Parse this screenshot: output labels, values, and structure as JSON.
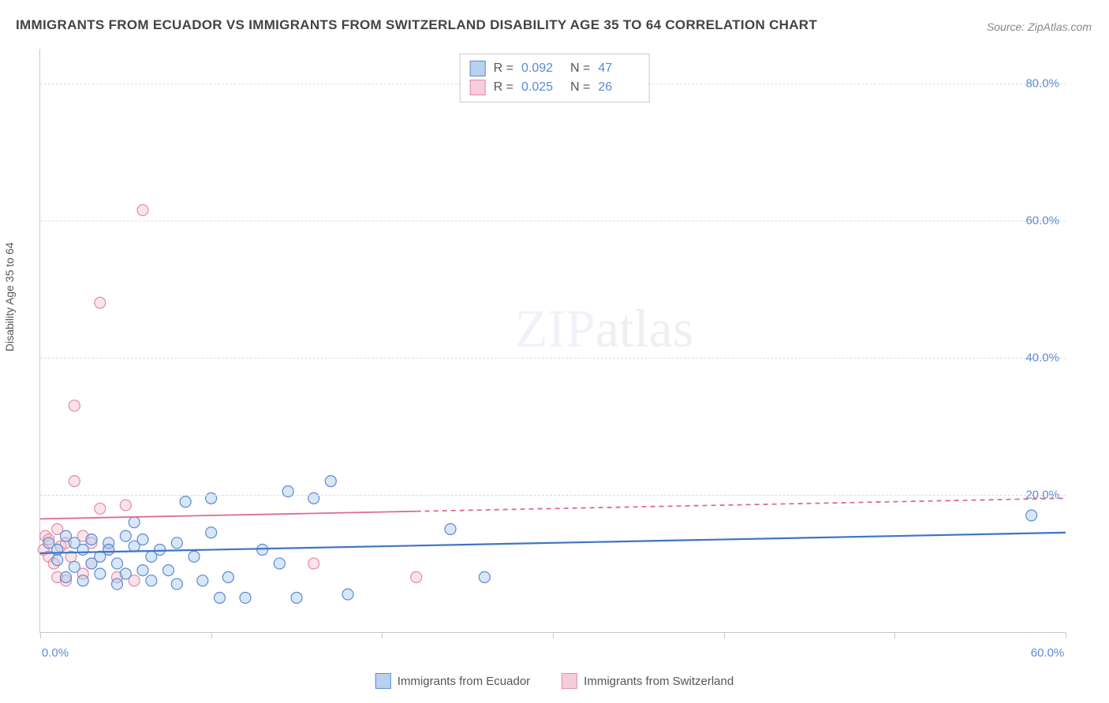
{
  "title": "IMMIGRANTS FROM ECUADOR VS IMMIGRANTS FROM SWITZERLAND DISABILITY AGE 35 TO 64 CORRELATION CHART",
  "source": "Source: ZipAtlas.com",
  "y_axis_label": "Disability Age 35 to 64",
  "watermark_a": "ZIP",
  "watermark_b": "atlas",
  "chart": {
    "type": "scatter",
    "xlim": [
      0,
      60
    ],
    "ylim": [
      0,
      85
    ],
    "x_ticks": [
      0,
      10,
      20,
      30,
      40,
      50,
      60
    ],
    "x_tick_labels": {
      "0": "0.0%",
      "60": "60.0%"
    },
    "y_grid": [
      20,
      40,
      60,
      80
    ],
    "y_tick_labels": {
      "20": "20.0%",
      "40": "40.0%",
      "60": "60.0%",
      "80": "80.0%"
    },
    "background_color": "#ffffff",
    "grid_color": "#dedede",
    "axis_color": "#c9c9c9",
    "tick_label_color": "#5b8bd4",
    "marker_radius": 7,
    "marker_opacity": 0.45,
    "series": [
      {
        "name": "Immigrants from Ecuador",
        "fill": "#a9c7ec",
        "stroke": "#5b8bd4",
        "swatch_fill": "#b8d1ef",
        "swatch_border": "#5b8bd4",
        "R": "0.092",
        "N": "47",
        "trend": {
          "x1": 0,
          "y1": 11.5,
          "x2": 60,
          "y2": 14.5,
          "color": "#3f74c7",
          "width": 2.2,
          "dash_after_x": null
        },
        "points": [
          [
            0.5,
            13
          ],
          [
            1,
            12
          ],
          [
            1,
            10.5
          ],
          [
            1.5,
            14
          ],
          [
            1.5,
            8
          ],
          [
            2,
            13
          ],
          [
            2,
            9.5
          ],
          [
            2.5,
            12
          ],
          [
            2.5,
            7.5
          ],
          [
            3,
            13.5
          ],
          [
            3,
            10
          ],
          [
            3.5,
            11
          ],
          [
            3.5,
            8.5
          ],
          [
            4,
            13
          ],
          [
            4,
            12
          ],
          [
            4.5,
            10
          ],
          [
            4.5,
            7
          ],
          [
            5,
            14
          ],
          [
            5,
            8.5
          ],
          [
            5.5,
            16
          ],
          [
            5.5,
            12.5
          ],
          [
            6,
            9
          ],
          [
            6,
            13.5
          ],
          [
            6.5,
            11
          ],
          [
            6.5,
            7.5
          ],
          [
            7,
            12
          ],
          [
            7.5,
            9
          ],
          [
            8,
            13
          ],
          [
            8,
            7
          ],
          [
            8.5,
            19
          ],
          [
            9,
            11
          ],
          [
            9.5,
            7.5
          ],
          [
            10,
            14.5
          ],
          [
            10,
            19.5
          ],
          [
            10.5,
            5
          ],
          [
            11,
            8
          ],
          [
            12,
            5
          ],
          [
            13,
            12
          ],
          [
            14,
            10
          ],
          [
            14.5,
            20.5
          ],
          [
            15,
            5
          ],
          [
            16,
            19.5
          ],
          [
            17,
            22
          ],
          [
            18,
            5.5
          ],
          [
            24,
            15
          ],
          [
            26,
            8
          ],
          [
            58,
            17
          ]
        ]
      },
      {
        "name": "Immigrants from Switzerland",
        "fill": "#f3c2cf",
        "stroke": "#e48aa4",
        "swatch_fill": "#f6cdd8",
        "swatch_border": "#e48aa4",
        "R": "0.025",
        "N": "26",
        "trend": {
          "x1": 0,
          "y1": 16.5,
          "x2": 60,
          "y2": 19.5,
          "color": "#e06a8e",
          "width": 1.8,
          "dash_after_x": 22
        },
        "points": [
          [
            0.2,
            12
          ],
          [
            0.3,
            14
          ],
          [
            0.5,
            11
          ],
          [
            0.5,
            13.5
          ],
          [
            0.8,
            10
          ],
          [
            1,
            8
          ],
          [
            1,
            15
          ],
          [
            1.2,
            12.5
          ],
          [
            1.5,
            13
          ],
          [
            1.5,
            7.5
          ],
          [
            1.8,
            11
          ],
          [
            2,
            33
          ],
          [
            2,
            22
          ],
          [
            2.5,
            14
          ],
          [
            2.5,
            8.5
          ],
          [
            3,
            13
          ],
          [
            3,
            10
          ],
          [
            3.5,
            48
          ],
          [
            3.5,
            18
          ],
          [
            4,
            12
          ],
          [
            4.5,
            8
          ],
          [
            5,
            18.5
          ],
          [
            5.5,
            7.5
          ],
          [
            6,
            61.5
          ],
          [
            16,
            10
          ],
          [
            22,
            8
          ]
        ]
      }
    ]
  },
  "stats_legend_labels": {
    "R": "R =",
    "N": "N ="
  },
  "bottom_legend": [
    {
      "series": 0
    },
    {
      "series": 1
    }
  ]
}
